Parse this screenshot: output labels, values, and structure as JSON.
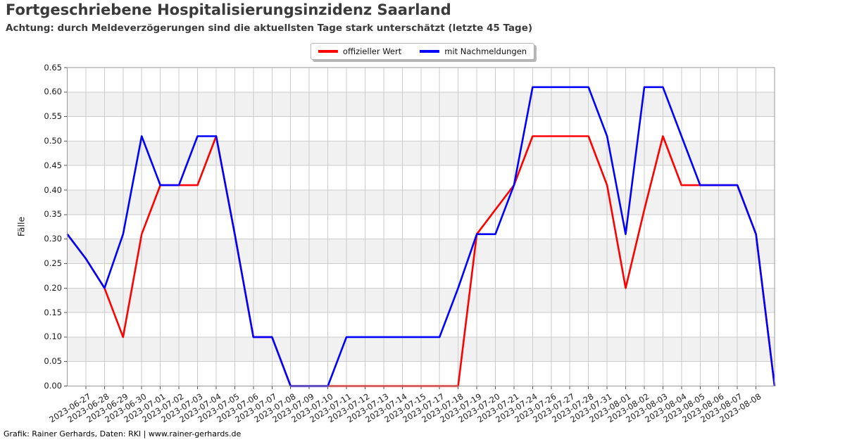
{
  "header": {
    "title": "Fortgeschriebene Hospitalisierungsinzidenz Saarland",
    "subtitle": "Achtung: durch Meldeverzögerungen sind die aktuellsten Tage stark unterschätzt (letzte 45 Tage)"
  },
  "legend": {
    "items": [
      {
        "label": "offizieller Wert",
        "color": "#ff0000"
      },
      {
        "label": "mit Nachmeldungen",
        "color": "#0000ff"
      }
    ]
  },
  "footer": {
    "credit": "Grafik: Rainer Gerhards, Daten: RKI | www.rainer-gerhards.de"
  },
  "chart_data": {
    "type": "line",
    "title": "Fortgeschriebene Hospitalisierungsinzidenz Saarland",
    "xlabel": "",
    "ylabel": "Fälle",
    "ylim": [
      0,
      0.65
    ],
    "ytick_step": 0.05,
    "grid": true,
    "band_color": "#f1f1f1",
    "grid_color": "#cccccc",
    "spine_color": "#9a9a9a",
    "legend_position": "top-center",
    "categories": [
      "2023-06-27",
      "2023-06-28",
      "2023-06-29",
      "2023-06-30",
      "2023-07-01",
      "2023-07-02",
      "2023-07-03",
      "2023-07-04",
      "2023-07-05",
      "2023-07-06",
      "2023-07-07",
      "2023-07-08",
      "2023-07-09",
      "2023-07-10",
      "2023-07-11",
      "2023-07-12",
      "2023-07-13",
      "2023-07-14",
      "2023-07-15",
      "2023-07-17",
      "2023-07-18",
      "2023-07-19",
      "2023-07-20",
      "2023-07-21",
      "2023-07-24",
      "2023-07-26",
      "2023-07-27",
      "2023-07-28",
      "2023-07-31",
      "2023-08-01",
      "2023-08-02",
      "2023-08-03",
      "2023-08-04",
      "2023-08-05",
      "2023-08-06",
      "2023-08-07",
      "2023-08-08"
    ],
    "series": [
      {
        "name": "offizieller Wert",
        "color": "#ff0000",
        "values": [
          0.26,
          0.2,
          0.1,
          0.31,
          0.41,
          0.41,
          0.41,
          0.51,
          0.31,
          0.1,
          0.1,
          0.0,
          0.0,
          0.0,
          0.0,
          0.0,
          0.0,
          0.0,
          0.0,
          0.0,
          0.0,
          0.31,
          0.36,
          0.41,
          0.51,
          0.51,
          0.51,
          0.51,
          0.41,
          0.2,
          0.36,
          0.51,
          0.41,
          0.41,
          0.41,
          0.41,
          0.31
        ]
      },
      {
        "name": "mit Nachmeldungen",
        "color": "#0000ff",
        "values": [
          0.26,
          0.2,
          0.31,
          0.51,
          0.41,
          0.41,
          0.51,
          0.51,
          0.31,
          0.1,
          0.1,
          0.0,
          0.0,
          0.0,
          0.1,
          0.1,
          0.1,
          0.1,
          0.1,
          0.1,
          0.2,
          0.31,
          0.31,
          0.41,
          0.61,
          0.61,
          0.61,
          0.61,
          0.51,
          0.31,
          0.61,
          0.61,
          0.51,
          0.41,
          0.41,
          0.41,
          0.31
        ]
      }
    ],
    "edge_continuation": {
      "note": "Both polylines extend to the plot edges beyond the labeled ticks.",
      "left_edge_value": 0.31,
      "right_edge_value": 0.0
    }
  }
}
